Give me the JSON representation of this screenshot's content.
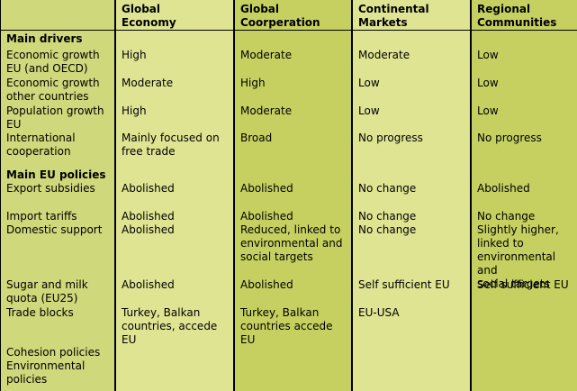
{
  "colors": {
    "col_label": "#cfd87a",
    "col_light": "#dfe493",
    "col_dark": "#c6d060",
    "border": "#000000"
  },
  "header": {
    "col1": "Global\nEconomy",
    "col2": "Global\nCoorperation",
    "col3": "Continental\nMarkets",
    "col4": "Regional\nCommunities"
  },
  "sections": {
    "drivers": "Main drivers",
    "policies": "Main EU policies"
  },
  "rows": [
    {
      "label": "Economic growth\nEU (and OECD)",
      "c1": "High",
      "c2": "Moderate",
      "c3": "Moderate",
      "c4": "Low"
    },
    {
      "label": "Economic growth\nother countries",
      "c1": "Moderate",
      "c2": "High",
      "c3": "Low",
      "c4": "Low"
    },
    {
      "label": "Population growth\nEU",
      "c1": "High",
      "c2": "Moderate",
      "c3": "Low",
      "c4": "Low"
    },
    {
      "label": "International\ncooperation",
      "c1": "Mainly focused on\nfree trade",
      "c2": "Broad",
      "c3": "No progress",
      "c4": "No progress"
    },
    {
      "label": "Export subsidies",
      "c1": "Abolished",
      "c2": "Abolished",
      "c3": "No change",
      "c4": "Abolished"
    },
    {
      "label": "Import tariffs",
      "c1": "Abolished",
      "c2": "Abolished",
      "c3": "No change",
      "c4": "No change"
    },
    {
      "label": "Domestic support",
      "c1": "Abolished",
      "c2": "Reduced, linked to\nenvironmental and\nsocial targets",
      "c3": "No change",
      "c4": "Slightly higher,\nlinked to\nenvironmental and\nsocial targets"
    },
    {
      "label": "Sugar and milk\nquota (EU25)",
      "c1": "Abolished",
      "c2": "Abolished",
      "c3": "Self sufficient EU",
      "c4": "Self sufficient EU"
    },
    {
      "label": "Trade blocks",
      "c1": "Turkey, Balkan\ncountries, accede\nEU",
      "c2": "Turkey, Balkan\ncountries accede\nEU",
      "c3": "EU-USA",
      "c4": ""
    },
    {
      "label": "Cohesion policies",
      "c1": "",
      "c2": "",
      "c3": "",
      "c4": ""
    },
    {
      "label": "Environmental\npolicies",
      "c1": "",
      "c2": "",
      "c3": "",
      "c4": ""
    }
  ]
}
